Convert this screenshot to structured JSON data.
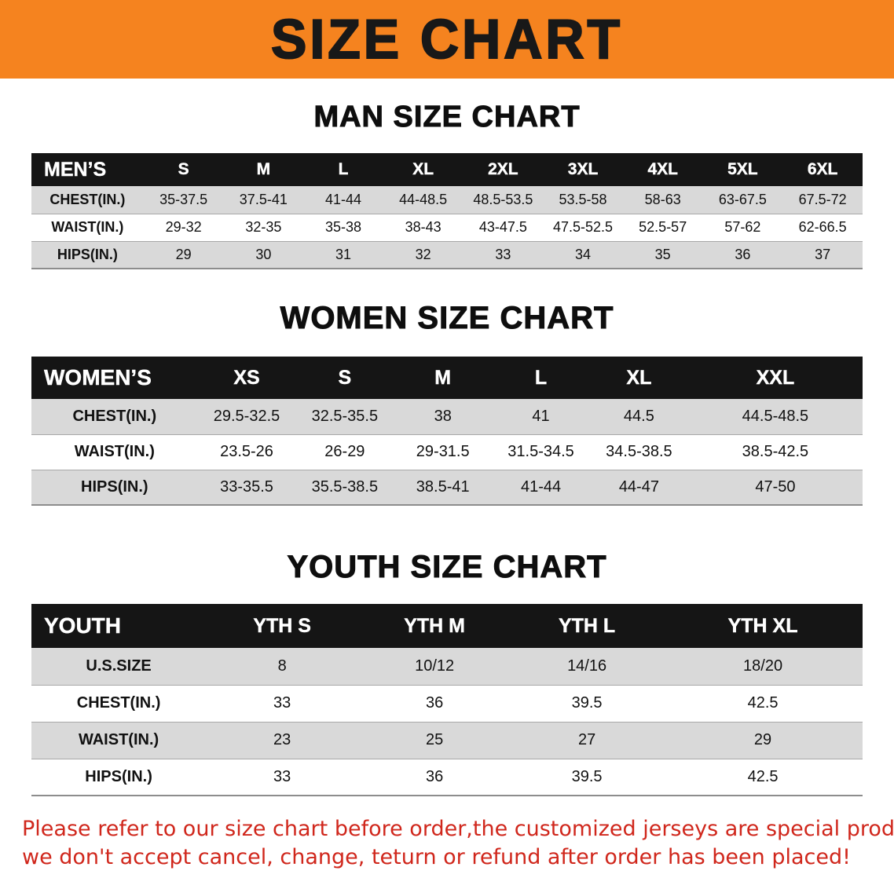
{
  "banner": {
    "title": "SIZE CHART"
  },
  "colors": {
    "banner_bg": "#f5831f",
    "banner_text": "#181818",
    "header_bg": "#151515",
    "header_text": "#ffffff",
    "row_alt_bg": "#d9d9d9",
    "footer_text": "#d0271c"
  },
  "sections": {
    "men": {
      "heading": "MAN SIZE CHART",
      "table": {
        "header": [
          "MEN’S",
          "S",
          "M",
          "L",
          "XL",
          "2XL",
          "3XL",
          "4XL",
          "5XL",
          "6XL"
        ],
        "rows": [
          [
            "CHEST(IN.)",
            "35-37.5",
            "37.5-41",
            "41-44",
            "44-48.5",
            "48.5-53.5",
            "53.5-58",
            "58-63",
            "63-67.5",
            "67.5-72"
          ],
          [
            "WAIST(IN.)",
            "29-32",
            "32-35",
            "35-38",
            "38-43",
            "43-47.5",
            "47.5-52.5",
            "52.5-57",
            "57-62",
            "62-66.5"
          ],
          [
            "HIPS(IN.)",
            "29",
            "30",
            "31",
            "32",
            "33",
            "34",
            "35",
            "36",
            "37"
          ]
        ]
      }
    },
    "women": {
      "heading": "WOMEN SIZE CHART",
      "table": {
        "header": [
          "WOMEN’S",
          "XS",
          "S",
          "M",
          "L",
          "XL",
          "XXL"
        ],
        "rows": [
          [
            "CHEST(IN.)",
            "29.5-32.5",
            "32.5-35.5",
            "38",
            "41",
            "44.5",
            "44.5-48.5"
          ],
          [
            "WAIST(IN.)",
            "23.5-26",
            "26-29",
            "29-31.5",
            "31.5-34.5",
            "34.5-38.5",
            "38.5-42.5"
          ],
          [
            "HIPS(IN.)",
            "33-35.5",
            "35.5-38.5",
            "38.5-41",
            "41-44",
            "44-47",
            "47-50"
          ]
        ]
      }
    },
    "youth": {
      "heading": "YOUTH SIZE CHART",
      "table": {
        "header": [
          "YOUTH",
          "YTH S",
          "YTH M",
          "YTH L",
          "YTH XL"
        ],
        "rows": [
          [
            "U.S.SIZE",
            "8",
            "10/12",
            "14/16",
            "18/20"
          ],
          [
            "CHEST(IN.)",
            "33",
            "36",
            "39.5",
            "42.5"
          ],
          [
            "WAIST(IN.)",
            "23",
            "25",
            "27",
            "29"
          ],
          [
            "HIPS(IN.)",
            "33",
            "36",
            "39.5",
            "42.5"
          ]
        ]
      }
    }
  },
  "footer": {
    "line1": "Please refer to our size chart before order,the customized jerseys are special products,",
    "line2": "we don't accept cancel, change, teturn or refund after order has been placed!"
  }
}
